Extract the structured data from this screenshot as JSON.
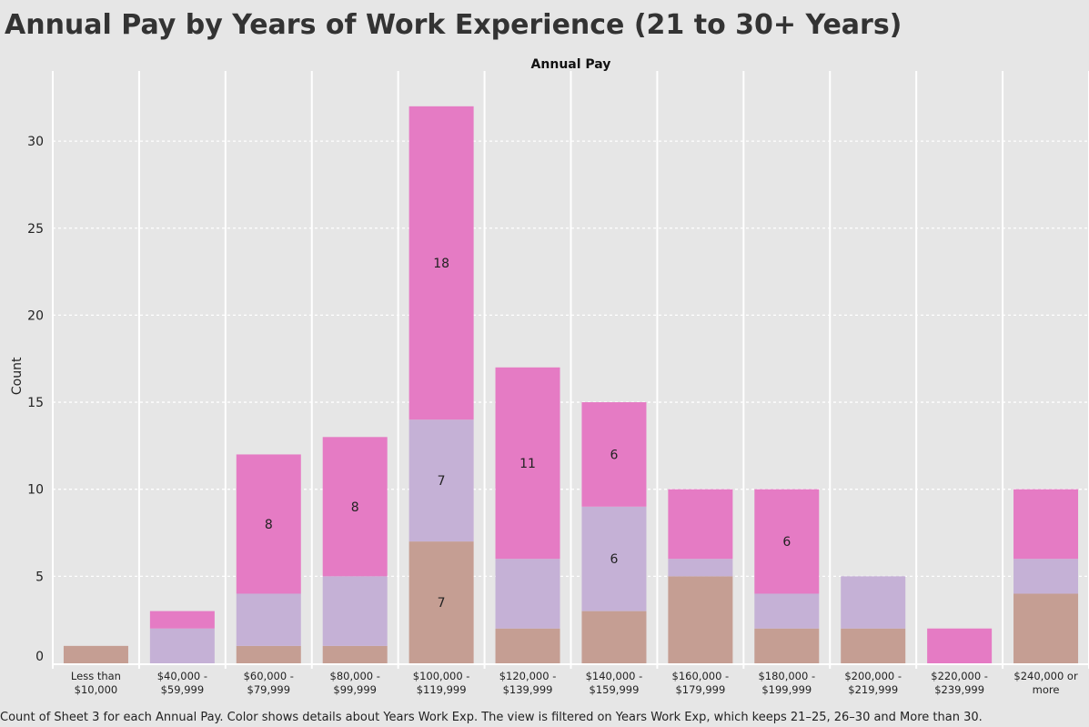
{
  "chart_data": {
    "type": "bar",
    "stacked": true,
    "title": "Annual Pay by Years of Work Experience (21 to 30+ Years)",
    "column_header": "Annual Pay",
    "ylabel": "Count",
    "ylim": [
      0,
      32
    ],
    "yticks": [
      0,
      5,
      10,
      15,
      20,
      25,
      30
    ],
    "grid": true,
    "categories": [
      [
        "Less than",
        "$10,000"
      ],
      [
        "$40,000 -",
        "$59,999"
      ],
      [
        "$60,000 -",
        "$79,999"
      ],
      [
        "$80,000 -",
        "$99,999"
      ],
      [
        "$100,000 -",
        "$119,999"
      ],
      [
        "$120,000 -",
        "$139,999"
      ],
      [
        "$140,000 -",
        "$159,999"
      ],
      [
        "$160,000 -",
        "$179,999"
      ],
      [
        "$180,000 -",
        "$199,999"
      ],
      [
        "$200,000 -",
        "$219,999"
      ],
      [
        "$220,000 -",
        "$239,999"
      ],
      [
        "$240,000 or",
        "more"
      ]
    ],
    "series": [
      {
        "values": [
          1,
          0,
          1,
          1,
          7,
          2,
          3,
          5,
          2,
          2,
          0,
          4
        ],
        "color": "#c59e93"
      },
      {
        "values": [
          0,
          2,
          3,
          4,
          7,
          4,
          6,
          1,
          2,
          3,
          0,
          2
        ],
        "color": "#c5b1d6"
      },
      {
        "values": [
          0,
          1,
          8,
          8,
          18,
          11,
          6,
          4,
          6,
          0,
          2,
          4
        ],
        "color": "#e57bc4"
      }
    ],
    "data_labels": [
      {
        "category": 2,
        "series": 2,
        "text": "8"
      },
      {
        "category": 3,
        "series": 2,
        "text": "8"
      },
      {
        "category": 4,
        "series": 0,
        "text": "7"
      },
      {
        "category": 4,
        "series": 1,
        "text": "7"
      },
      {
        "category": 4,
        "series": 2,
        "text": "18"
      },
      {
        "category": 5,
        "series": 2,
        "text": "11"
      },
      {
        "category": 6,
        "series": 1,
        "text": "6"
      },
      {
        "category": 6,
        "series": 2,
        "text": "6"
      },
      {
        "category": 8,
        "series": 2,
        "text": "6"
      }
    ]
  },
  "caption": "Count of Sheet 3 for each Annual Pay.  Color shows details about Years Work Exp. The view is filtered on Years Work Exp, which keeps 21–25, 26–30 and More than 30."
}
